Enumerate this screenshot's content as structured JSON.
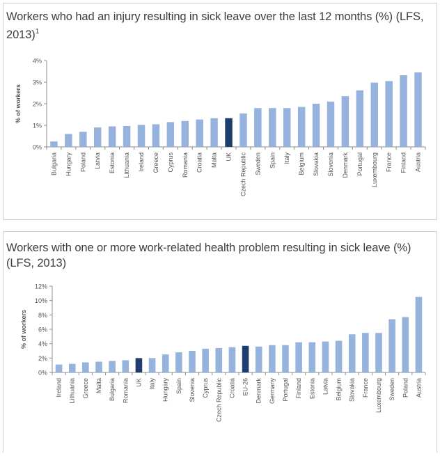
{
  "chart_data": [
    {
      "type": "bar",
      "title": "Workers who had an injury resulting in sick leave over the last 12 months (%) (LFS, 2013)",
      "title_footnote": "1",
      "ylabel": "% of workers",
      "xlabel": "",
      "ylim": [
        0,
        4
      ],
      "yticks": [
        "0%",
        "1%",
        "2%",
        "3%",
        "4%"
      ],
      "grid": false,
      "legend": "none",
      "categories": [
        "Bulgaria",
        "Hungary",
        "Poland",
        "Latvia",
        "Estonia",
        "Lithuania",
        "Ireland",
        "Greece",
        "Cyprus",
        "Romania",
        "Croatia",
        "Malta",
        "UK",
        "Czech Republic",
        "Sweden",
        "Spain",
        "Italy",
        "Belgium",
        "Slovakia",
        "Slovenia",
        "Denmark",
        "Portugal",
        "Luxembourg",
        "France",
        "Finland",
        "Austria"
      ],
      "values": [
        0.25,
        0.6,
        0.7,
        0.9,
        0.95,
        0.97,
        1.02,
        1.05,
        1.15,
        1.2,
        1.27,
        1.33,
        1.33,
        1.55,
        1.8,
        1.8,
        1.8,
        1.85,
        2.0,
        2.1,
        2.35,
        2.62,
        2.98,
        3.05,
        3.32,
        3.45
      ],
      "highlight": [
        "UK"
      ]
    },
    {
      "type": "bar",
      "title": "Workers with one or more work-related health problem resulting in sick leave (%) (LFS, 2013)",
      "ylabel": "% of workers",
      "xlabel": "",
      "ylim": [
        0,
        12
      ],
      "yticks": [
        "0%",
        "2%",
        "4%",
        "6%",
        "8%",
        "10%",
        "12%"
      ],
      "grid": false,
      "legend": "none",
      "categories": [
        "Ireland",
        "Lithuania",
        "Greece",
        "Malta",
        "Bulgaria",
        "Romania",
        "UK",
        "Italy",
        "Hungary",
        "Spain",
        "Slovenia",
        "Cyprus",
        "Czech Republic",
        "Croatia",
        "EU-26",
        "Denmark",
        "Germany",
        "Portugal",
        "Finland",
        "Estonia",
        "Latvia",
        "Belgium",
        "Slovakia",
        "France",
        "Luxembourg",
        "Sweden",
        "Poland",
        "Austria"
      ],
      "values": [
        1.1,
        1.2,
        1.4,
        1.5,
        1.6,
        1.7,
        2.0,
        2.0,
        2.5,
        2.8,
        3.0,
        3.3,
        3.4,
        3.5,
        3.7,
        3.6,
        3.8,
        3.8,
        4.2,
        4.2,
        4.3,
        4.4,
        5.3,
        5.5,
        5.5,
        7.4,
        7.7,
        10.5
      ],
      "highlight": [
        "UK",
        "EU-26"
      ]
    }
  ],
  "colors": {
    "bar": "#95b3dc",
    "highlight": "#1f3d6e",
    "axis": "#8c8c8c"
  }
}
